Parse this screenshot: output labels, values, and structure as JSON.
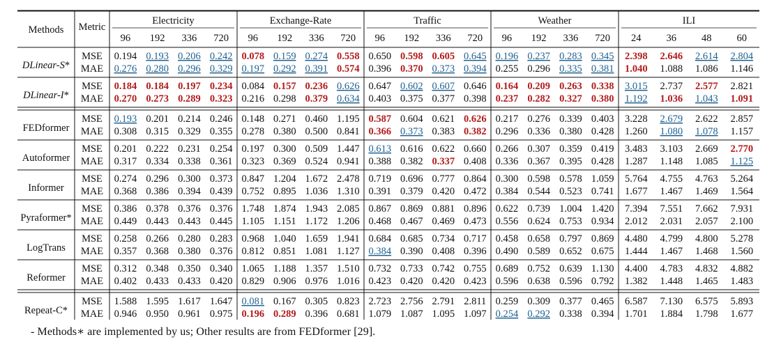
{
  "table": {
    "header": {
      "methods_label": "Methods",
      "metric_label": "Metric",
      "datasets": [
        {
          "name": "Electricity",
          "horizons": [
            "96",
            "192",
            "336",
            "720"
          ]
        },
        {
          "name": "Exchange-Rate",
          "horizons": [
            "96",
            "192",
            "336",
            "720"
          ]
        },
        {
          "name": "Traffic",
          "horizons": [
            "96",
            "192",
            "336",
            "720"
          ]
        },
        {
          "name": "Weather",
          "horizons": [
            "96",
            "192",
            "336",
            "720"
          ]
        },
        {
          "name": "ILI",
          "horizons": [
            "24",
            "36",
            "48",
            "60"
          ]
        }
      ]
    },
    "styles": {
      "best_color": "#b31b1b",
      "second_color": "#1d5f8f",
      "text_color": "#111111"
    },
    "rows": [
      {
        "method": "DLinear-",
        "method_sub": "S",
        "method_suffix": "*",
        "italic": true,
        "mse": [
          "0.194",
          "0.193",
          "0.206",
          "0.242",
          "0.078",
          "0.159",
          "0.274",
          "0.558",
          "0.650",
          "0.598",
          "0.605",
          "0.645",
          "0.196",
          "0.237",
          "0.283",
          "0.345",
          "2.398",
          "2.646",
          "2.614",
          "2.804"
        ],
        "mse_style": [
          "",
          "u",
          "u",
          "u",
          "b",
          "u",
          "u",
          "b",
          "",
          "b",
          "b",
          "u",
          "u",
          "u",
          "u",
          "u",
          "b",
          "b",
          "u",
          "u"
        ],
        "mae": [
          "0.276",
          "0.280",
          "0.296",
          "0.329",
          "0.197",
          "0.292",
          "0.391",
          "0.574",
          "0.396",
          "0.370",
          "0.373",
          "0.394",
          "0.255",
          "0.296",
          "0.335",
          "0.381",
          "1.040",
          "1.088",
          "1.086",
          "1.146"
        ],
        "mae_style": [
          "u",
          "u",
          "u",
          "u",
          "u",
          "u",
          "u",
          "b",
          "",
          "b",
          "u",
          "u",
          "",
          "",
          "u",
          "u",
          "b",
          "",
          "",
          ""
        ]
      },
      {
        "method": "DLinear-",
        "method_sub": "I",
        "method_suffix": "*",
        "italic": true,
        "mse": [
          "0.184",
          "0.184",
          "0.197",
          "0.234",
          "0.084",
          "0.157",
          "0.236",
          "0.626",
          "0.647",
          "0.602",
          "0.607",
          "0.646",
          "0.164",
          "0.209",
          "0.263",
          "0.338",
          "3.015",
          "2.737",
          "2.577",
          "2.821"
        ],
        "mse_style": [
          "b",
          "b",
          "b",
          "b",
          "",
          "b",
          "b",
          "u",
          "",
          "u",
          "u",
          "",
          "b",
          "b",
          "b",
          "b",
          "u",
          "",
          "b",
          ""
        ],
        "mae": [
          "0.270",
          "0.273",
          "0.289",
          "0.323",
          "0.216",
          "0.298",
          "0.379",
          "0.634",
          "0.403",
          "0.375",
          "0.377",
          "0.398",
          "0.237",
          "0.282",
          "0.327",
          "0.380",
          "1.192",
          "1.036",
          "1.043",
          "1.091"
        ],
        "mae_style": [
          "b",
          "b",
          "b",
          "b",
          "",
          "",
          "b",
          "u",
          "",
          "",
          "",
          "",
          "b",
          "b",
          "b",
          "b",
          "u",
          "b",
          "u",
          "b"
        ]
      },
      {
        "method": "FEDformer",
        "method_sub": "",
        "method_suffix": "",
        "italic": false,
        "mse": [
          "0.193",
          "0.201",
          "0.214",
          "0.246",
          "0.148",
          "0.271",
          "0.460",
          "1.195",
          "0.587",
          "0.604",
          "0.621",
          "0.626",
          "0.217",
          "0.276",
          "0.339",
          "0.403",
          "3.228",
          "2.679",
          "2.622",
          "2.857"
        ],
        "mse_style": [
          "u",
          "",
          "",
          "",
          "",
          "",
          "",
          "",
          "b",
          "",
          "",
          "b",
          "",
          "",
          "",
          "",
          "",
          "u",
          "",
          ""
        ],
        "mae": [
          "0.308",
          "0.315",
          "0.329",
          "0.355",
          "0.278",
          "0.380",
          "0.500",
          "0.841",
          "0.366",
          "0.373",
          "0.383",
          "0.382",
          "0.296",
          "0.336",
          "0.380",
          "0.428",
          "1.260",
          "1.080",
          "1.078",
          "1.157"
        ],
        "mae_style": [
          "",
          "",
          "",
          "",
          "",
          "",
          "",
          "",
          "b",
          "u",
          "",
          "b",
          "",
          "",
          "",
          "",
          "",
          "u",
          "u",
          ""
        ]
      },
      {
        "method": "Autoformer",
        "method_sub": "",
        "method_suffix": "",
        "italic": false,
        "mse": [
          "0.201",
          "0.222",
          "0.231",
          "0.254",
          "0.197",
          "0.300",
          "0.509",
          "1.447",
          "0.613",
          "0.616",
          "0.622",
          "0.660",
          "0.266",
          "0.307",
          "0.359",
          "0.419",
          "3.483",
          "3.103",
          "2.669",
          "2.770"
        ],
        "mse_style": [
          "",
          "",
          "",
          "",
          "",
          "",
          "",
          "",
          "u",
          "",
          "",
          "",
          "",
          "",
          "",
          "",
          "",
          "",
          "",
          "b"
        ],
        "mae": [
          "0.317",
          "0.334",
          "0.338",
          "0.361",
          "0.323",
          "0.369",
          "0.524",
          "0.941",
          "0.388",
          "0.382",
          "0.337",
          "0.408",
          "0.336",
          "0.367",
          "0.395",
          "0.428",
          "1.287",
          "1.148",
          "1.085",
          "1.125"
        ],
        "mae_style": [
          "",
          "",
          "",
          "",
          "",
          "",
          "",
          "",
          "",
          "",
          "b",
          "",
          "",
          "",
          "",
          "",
          "",
          "",
          "",
          "u"
        ]
      },
      {
        "method": "Informer",
        "method_sub": "",
        "method_suffix": "",
        "italic": false,
        "mse": [
          "0.274",
          "0.296",
          "0.300",
          "0.373",
          "0.847",
          "1.204",
          "1.672",
          "2.478",
          "0.719",
          "0.696",
          "0.777",
          "0.864",
          "0.300",
          "0.598",
          "0.578",
          "1.059",
          "5.764",
          "4.755",
          "4.763",
          "5.264"
        ],
        "mse_style": [
          "",
          "",
          "",
          "",
          "",
          "",
          "",
          "",
          "",
          "",
          "",
          "",
          "",
          "",
          "",
          "",
          "",
          "",
          "",
          ""
        ],
        "mae": [
          "0.368",
          "0.386",
          "0.394",
          "0.439",
          "0.752",
          "0.895",
          "1.036",
          "1.310",
          "0.391",
          "0.379",
          "0.420",
          "0.472",
          "0.384",
          "0.544",
          "0.523",
          "0.741",
          "1.677",
          "1.467",
          "1.469",
          "1.564"
        ],
        "mae_style": [
          "",
          "",
          "",
          "",
          "",
          "",
          "",
          "",
          "",
          "",
          "",
          "",
          "",
          "",
          "",
          "",
          "",
          "",
          "",
          ""
        ]
      },
      {
        "method": "Pyraformer",
        "method_sub": "",
        "method_suffix": "*",
        "italic": false,
        "mse": [
          "0.386",
          "0.378",
          "0.376",
          "0.376",
          "1.748",
          "1.874",
          "1.943",
          "2.085",
          "0.867",
          "0.869",
          "0.881",
          "0.896",
          "0.622",
          "0.739",
          "1.004",
          "1.420",
          "7.394",
          "7.551",
          "7.662",
          "7.931"
        ],
        "mse_style": [
          "",
          "",
          "",
          "",
          "",
          "",
          "",
          "",
          "",
          "",
          "",
          "",
          "",
          "",
          "",
          "",
          "",
          "",
          "",
          ""
        ],
        "mae": [
          "0.449",
          "0.443",
          "0.443",
          "0.445",
          "1.105",
          "1.151",
          "1.172",
          "1.206",
          "0.468",
          "0.467",
          "0.469",
          "0.473",
          "0.556",
          "0.624",
          "0.753",
          "0.934",
          "2.012",
          "2.031",
          "2.057",
          "2.100"
        ],
        "mae_style": [
          "",
          "",
          "",
          "",
          "",
          "",
          "",
          "",
          "",
          "",
          "",
          "",
          "",
          "",
          "",
          "",
          "",
          "",
          "",
          ""
        ]
      },
      {
        "method": "LogTrans",
        "method_sub": "",
        "method_suffix": "",
        "italic": false,
        "mse": [
          "0.258",
          "0.266",
          "0.280",
          "0.283",
          "0.968",
          "1.040",
          "1.659",
          "1.941",
          "0.684",
          "0.685",
          "0.734",
          "0.717",
          "0.458",
          "0.658",
          "0.797",
          "0.869",
          "4.480",
          "4.799",
          "4.800",
          "5.278"
        ],
        "mse_style": [
          "",
          "",
          "",
          "",
          "",
          "",
          "",
          "",
          "",
          "",
          "",
          "",
          "",
          "",
          "",
          "",
          "",
          "",
          "",
          ""
        ],
        "mae": [
          "0.357",
          "0.368",
          "0.380",
          "0.376",
          "0.812",
          "0.851",
          "1.081",
          "1.127",
          "0.384",
          "0.390",
          "0.408",
          "0.396",
          "0.490",
          "0.589",
          "0.652",
          "0.675",
          "1.444",
          "1.467",
          "1.468",
          "1.560"
        ],
        "mae_style": [
          "",
          "",
          "",
          "",
          "",
          "",
          "",
          "",
          "u",
          "",
          "",
          "",
          "",
          "",
          "",
          "",
          "",
          "",
          "",
          ""
        ]
      },
      {
        "method": "Reformer",
        "method_sub": "",
        "method_suffix": "",
        "italic": false,
        "mse": [
          "0.312",
          "0.348",
          "0.350",
          "0.340",
          "1.065",
          "1.188",
          "1.357",
          "1.510",
          "0.732",
          "0.733",
          "0.742",
          "0.755",
          "0.689",
          "0.752",
          "0.639",
          "1.130",
          "4.400",
          "4.783",
          "4.832",
          "4.882"
        ],
        "mse_style": [
          "",
          "",
          "",
          "",
          "",
          "",
          "",
          "",
          "",
          "",
          "",
          "",
          "",
          "",
          "",
          "",
          "",
          "",
          "",
          ""
        ],
        "mae": [
          "0.402",
          "0.433",
          "0.433",
          "0.420",
          "0.829",
          "0.906",
          "0.976",
          "1.016",
          "0.423",
          "0.420",
          "0.420",
          "0.423",
          "0.596",
          "0.638",
          "0.596",
          "0.792",
          "1.382",
          "1.448",
          "1.465",
          "1.483"
        ],
        "mae_style": [
          "",
          "",
          "",
          "",
          "",
          "",
          "",
          "",
          "",
          "",
          "",
          "",
          "",
          "",
          "",
          "",
          "",
          "",
          "",
          ""
        ]
      },
      {
        "method": "Repeat-C",
        "method_sub": "",
        "method_suffix": "*",
        "italic": false,
        "mse": [
          "1.588",
          "1.595",
          "1.617",
          "1.647",
          "0.081",
          "0.167",
          "0.305",
          "0.823",
          "2.723",
          "2.756",
          "2.791",
          "2.811",
          "0.259",
          "0.309",
          "0.377",
          "0.465",
          "6.587",
          "7.130",
          "6.575",
          "5.893"
        ],
        "mse_style": [
          "",
          "",
          "",
          "",
          "u",
          "",
          "",
          "",
          "",
          "",
          "",
          "",
          "",
          "",
          "",
          "",
          "",
          "",
          "",
          ""
        ],
        "mae": [
          "0.946",
          "0.950",
          "0.961",
          "0.975",
          "0.196",
          "0.289",
          "0.396",
          "0.681",
          "1.079",
          "1.087",
          "1.095",
          "1.097",
          "0.254",
          "0.292",
          "0.338",
          "0.394",
          "1.701",
          "1.884",
          "1.798",
          "1.677"
        ],
        "mae_style": [
          "",
          "",
          "",
          "",
          "b",
          "b",
          "",
          "",
          "",
          "",
          "",
          "",
          "u",
          "u",
          "",
          "",
          "",
          "",
          "",
          ""
        ]
      }
    ],
    "metric_labels": {
      "mse": "MSE",
      "mae": "MAE"
    }
  },
  "footnote": "- Methods∗ are implemented by us; Other results are from FEDformer [29]."
}
